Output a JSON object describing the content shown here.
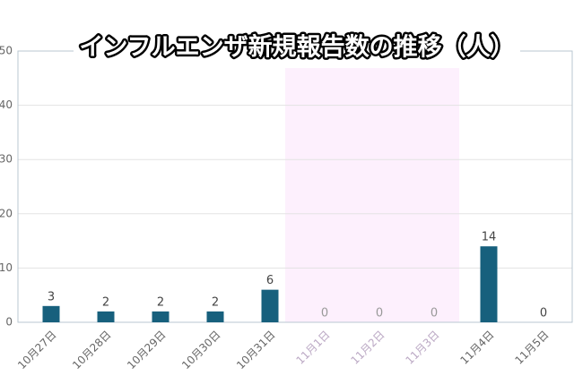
{
  "chart_data": {
    "type": "bar",
    "title": "インフルエンザ新規報告数の推移（人）",
    "categories": [
      "10月27日",
      "10月28日",
      "10月29日",
      "10月30日",
      "10月31日",
      "11月1日",
      "11月2日",
      "11月3日",
      "11月4日",
      "11月5日"
    ],
    "values": [
      3,
      2,
      2,
      2,
      6,
      0,
      0,
      0,
      14,
      0
    ],
    "color": "#17607d",
    "ylim": [
      0,
      50
    ],
    "yticks": [
      0,
      10,
      20,
      30,
      40,
      50
    ],
    "grid": true
  }
}
